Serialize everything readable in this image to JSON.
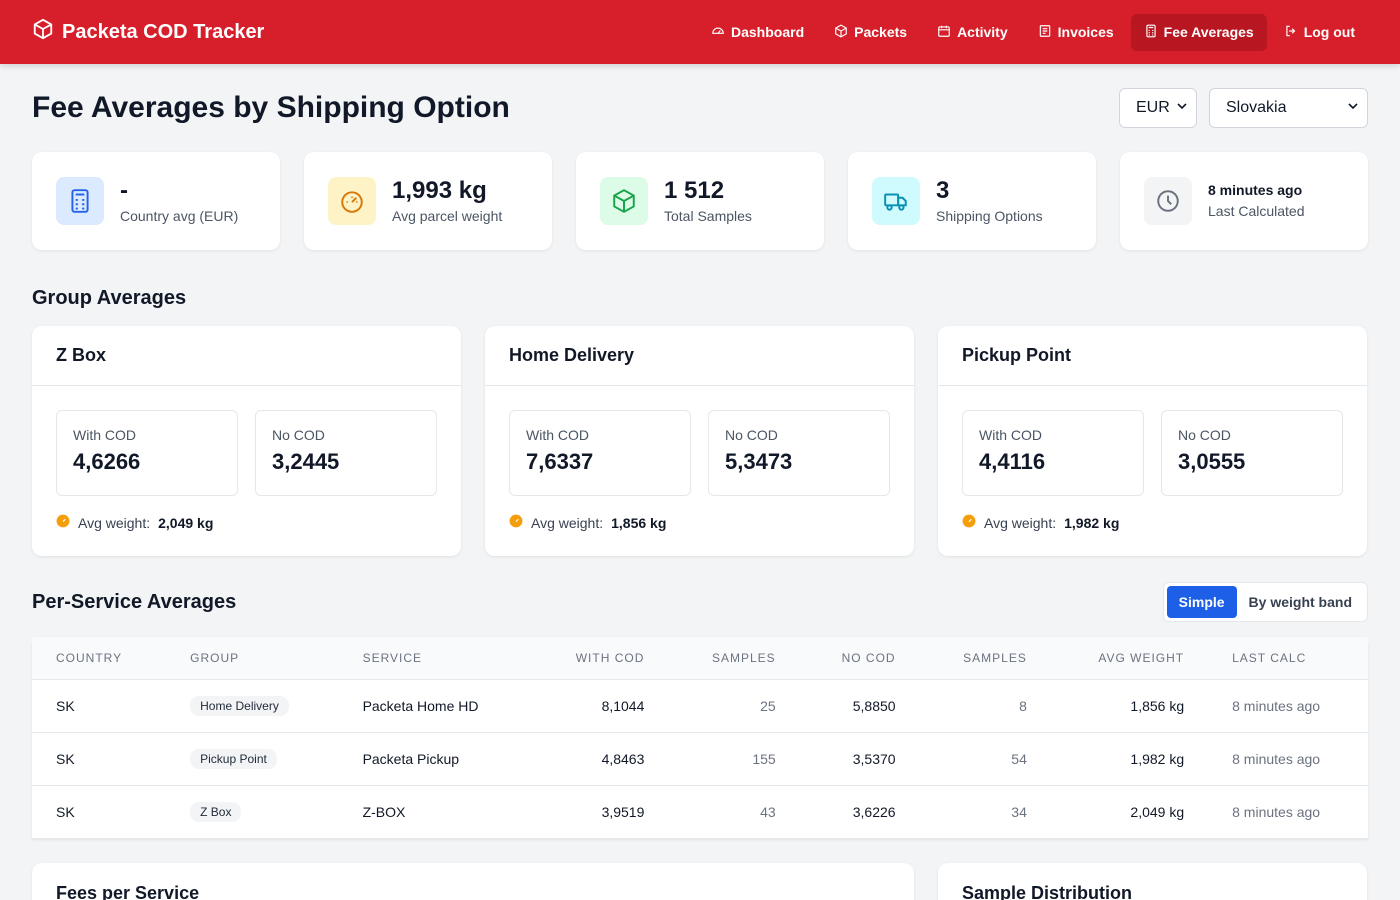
{
  "brand": {
    "title": "Packeta COD Tracker",
    "icon": "box-icon"
  },
  "nav": [
    {
      "key": "dashboard",
      "label": "Dashboard",
      "icon": "gauge-icon"
    },
    {
      "key": "packets",
      "label": "Packets",
      "icon": "box-icon"
    },
    {
      "key": "activity",
      "label": "Activity",
      "icon": "calendar-icon"
    },
    {
      "key": "invoices",
      "label": "Invoices",
      "icon": "receipt-icon"
    },
    {
      "key": "fee-averages",
      "label": "Fee Averages",
      "icon": "calculator-icon",
      "active": true
    },
    {
      "key": "logout",
      "label": "Log out",
      "icon": "logout-icon"
    }
  ],
  "page": {
    "title": "Fee Averages by Shipping Option",
    "currency": "EUR",
    "country": "Slovakia"
  },
  "stats": [
    {
      "value": "-",
      "label": "Country avg (EUR)",
      "icon": "calculator-icon",
      "color": "#dbeafe"
    },
    {
      "value": "1,993 kg",
      "label": "Avg parcel weight",
      "icon": "gauge-icon",
      "color": "#fef3c7"
    },
    {
      "value": "1 512",
      "label": "Total Samples",
      "icon": "box-icon",
      "color": "#dcfce7"
    },
    {
      "value": "3",
      "label": "Shipping Options",
      "icon": "truck-icon",
      "color": "#cffafe"
    },
    {
      "value": "8 minutes ago",
      "label": "Last Calculated",
      "icon": "clock-icon",
      "color": "#f3f4f6"
    }
  ],
  "groups_title": "Group Averages",
  "groups": [
    {
      "name": "Z Box",
      "with_cod_label": "With COD",
      "with_cod": "4,6266",
      "no_cod_label": "No COD",
      "no_cod": "3,2445",
      "weight_label": "Avg weight:",
      "weight": "2,049 kg"
    },
    {
      "name": "Home Delivery",
      "with_cod_label": "With COD",
      "with_cod": "7,6337",
      "no_cod_label": "No COD",
      "no_cod": "5,3473",
      "weight_label": "Avg weight:",
      "weight": "1,856 kg"
    },
    {
      "name": "Pickup Point",
      "with_cod_label": "With COD",
      "with_cod": "4,4116",
      "no_cod_label": "No COD",
      "no_cod": "3,0555",
      "weight_label": "Avg weight:",
      "weight": "1,982 kg"
    }
  ],
  "service": {
    "title": "Per-Service Averages",
    "toggle": {
      "simple": "Simple",
      "band": "By weight band",
      "active": "simple"
    },
    "columns": [
      "Country",
      "Group",
      "Service",
      "With COD",
      "Samples",
      "No COD",
      "Samples",
      "Avg weight",
      "Last calc"
    ],
    "rows": [
      {
        "country": "SK",
        "group": "Home Delivery",
        "service": "Packeta Home HD",
        "with_cod": "8,1044",
        "with_samples": "25",
        "no_cod": "5,8850",
        "no_samples": "8",
        "weight": "1,856 kg",
        "last": "8 minutes ago"
      },
      {
        "country": "SK",
        "group": "Pickup Point",
        "service": "Packeta Pickup",
        "with_cod": "4,8463",
        "with_samples": "155",
        "no_cod": "3,5370",
        "no_samples": "54",
        "weight": "1,982 kg",
        "last": "8 minutes ago"
      },
      {
        "country": "SK",
        "group": "Z Box",
        "service": "Z-BOX",
        "with_cod": "3,9519",
        "with_samples": "43",
        "no_cod": "3,6226",
        "no_samples": "34",
        "weight": "2,049 kg",
        "last": "8 minutes ago"
      }
    ]
  },
  "bottom": {
    "fees_title": "Fees per Service",
    "dist_title": "Sample Distribution"
  },
  "colors": {
    "brand": "#d71f2b",
    "accent": "#1d5fe6"
  }
}
